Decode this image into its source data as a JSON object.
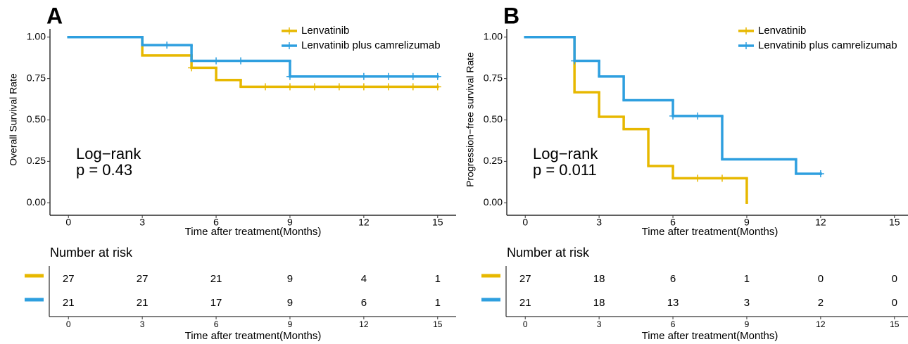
{
  "chart_data": [
    {
      "type": "step",
      "panel": "A",
      "ylabel": "Overall Survival Rate",
      "xlabel": "Time after treatment(Months)",
      "xlim": [
        -0.75,
        15.75
      ],
      "xticks": [
        0,
        3,
        6,
        9,
        12,
        15
      ],
      "ylim": [
        -0.05,
        1.05
      ],
      "yticks": [
        {
          "value": 0,
          "label": "0.00"
        },
        {
          "value": 0.25,
          "label": "0.25"
        },
        {
          "value": 0.5,
          "label": "0.50"
        },
        {
          "value": 0.75,
          "label": "0.75"
        },
        {
          "value": 1,
          "label": "1.00"
        }
      ],
      "annotation": [
        "Log−rank",
        "p = 0.43"
      ],
      "series": [
        {
          "name": "Lenvatinib",
          "color": "#E7B800",
          "x": [
            0,
            3,
            5,
            6,
            7,
            15
          ],
          "values": [
            1,
            0.889,
            0.815,
            0.741,
            0.7,
            0.7
          ],
          "censor_x": [
            5,
            8,
            9,
            10,
            11,
            12,
            13,
            14,
            15
          ],
          "censor_values": [
            0.815,
            0.7,
            0.7,
            0.7,
            0.7,
            0.7,
            0.7,
            0.7,
            0.7
          ]
        },
        {
          "name": "Lenvatinib plus camrelizumab",
          "color": "#2E9FDF",
          "x": [
            0,
            3,
            5,
            9,
            15
          ],
          "values": [
            1,
            0.952,
            0.857,
            0.762,
            0.762
          ],
          "censor_x": [
            4,
            6,
            7,
            9,
            12,
            13,
            14,
            15
          ],
          "censor_values": [
            0.952,
            0.857,
            0.857,
            0.762,
            0.762,
            0.762,
            0.762,
            0.762
          ]
        }
      ],
      "risk_table": {
        "title": "Number at risk",
        "xlabel": "Time after treatment(Months)",
        "xticks": [
          0,
          3,
          6,
          9,
          12,
          15
        ],
        "rows": [
          {
            "color": "#E7B800",
            "values": [
              27,
              27,
              21,
              9,
              4,
              1
            ]
          },
          {
            "color": "#2E9FDF",
            "values": [
              21,
              21,
              17,
              9,
              6,
              1
            ]
          }
        ]
      }
    },
    {
      "type": "step",
      "panel": "B",
      "ylabel": "Progression−free survival Rate",
      "xlabel": "Time after treatment(Months)",
      "xlim": [
        -0.75,
        15.75
      ],
      "xticks": [
        0,
        3,
        6,
        9,
        12,
        15
      ],
      "ylim": [
        -0.05,
        1.05
      ],
      "yticks": [
        {
          "value": 0,
          "label": "0.00"
        },
        {
          "value": 0.25,
          "label": "0.25"
        },
        {
          "value": 0.5,
          "label": "0.50"
        },
        {
          "value": 0.75,
          "label": "0.75"
        },
        {
          "value": 1,
          "label": "1.00"
        }
      ],
      "annotation": [
        "Log−rank",
        "p = 0.011"
      ],
      "series": [
        {
          "name": "Lenvatinib",
          "color": "#E7B800",
          "x": [
            0,
            2,
            3,
            4,
            5,
            6,
            9
          ],
          "values": [
            1,
            0.667,
            0.519,
            0.444,
            0.222,
            0.148,
            0
          ],
          "censor_x": [
            7,
            8
          ],
          "censor_values": [
            0.148,
            0.148
          ]
        },
        {
          "name": "Lenvatinib plus camrelizumab",
          "color": "#2E9FDF",
          "x": [
            0,
            2,
            3,
            4,
            6,
            8,
            11,
            12
          ],
          "values": [
            1,
            0.857,
            0.762,
            0.619,
            0.524,
            0.262,
            0.175,
            0.175
          ],
          "censor_x": [
            2,
            6,
            7,
            12
          ],
          "censor_values": [
            0.857,
            0.524,
            0.524,
            0.175
          ]
        }
      ],
      "risk_table": {
        "title": "Number at risk",
        "xlabel": "Time after treatment(Months)",
        "xticks": [
          0,
          3,
          6,
          9,
          12,
          15
        ],
        "rows": [
          {
            "color": "#E7B800",
            "values": [
              27,
              18,
              6,
              1,
              0,
              0
            ]
          },
          {
            "color": "#2E9FDF",
            "values": [
              21,
              18,
              13,
              3,
              2,
              0
            ]
          }
        ]
      }
    }
  ]
}
